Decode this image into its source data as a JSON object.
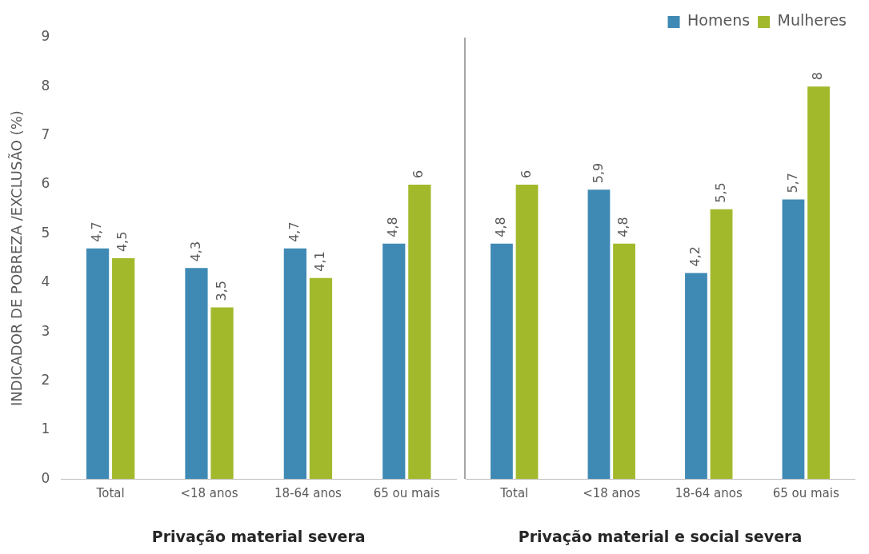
{
  "chart_data": [
    {
      "type": "bar",
      "ylabel": "INDICADOR DE POBREZA /EXCLUSÃO (%)",
      "xlabel": "Privação material severa",
      "categories": [
        "Total",
        "<18 anos",
        "18-64 anos",
        "65 ou mais"
      ],
      "ylim": [
        0,
        9
      ],
      "yticks": [
        0,
        1,
        2,
        3,
        4,
        5,
        6,
        7,
        8,
        9
      ],
      "grid": false,
      "legend": false,
      "series": [
        {
          "color": "#3f8ab5",
          "values": [
            4.7,
            4.3,
            4.7,
            4.8
          ],
          "value_labels": [
            "4,7",
            "4,3",
            "4,7",
            "4,8"
          ]
        },
        {
          "color": "#a3b92c",
          "values": [
            4.5,
            3.5,
            4.1,
            6
          ],
          "value_labels": [
            "4,5",
            "3,5",
            "4,1",
            "6"
          ]
        }
      ]
    },
    {
      "type": "bar",
      "xlabel": "Privação material e social severa",
      "categories": [
        "Total",
        "<18 anos",
        "18-64 anos",
        "65 ou mais"
      ],
      "ylim": [
        0,
        9
      ],
      "yticks": [
        0,
        1,
        2,
        3,
        4,
        5,
        6,
        7,
        8,
        9
      ],
      "tick_labels": "x",
      "grid": false,
      "legend": "top right",
      "series": [
        {
          "name": "Homens",
          "color": "#3f8ab5",
          "values": [
            4.8,
            5.9,
            4.2,
            5.7
          ],
          "value_labels": [
            "4,8",
            "5,9",
            "4,2",
            "5,7"
          ]
        },
        {
          "name": "Mulheres",
          "color": "#a3b92c",
          "values": [
            6,
            4.8,
            5.5,
            8
          ],
          "value_labels": [
            "6",
            "4,8",
            "5,5",
            "8"
          ]
        }
      ]
    }
  ]
}
